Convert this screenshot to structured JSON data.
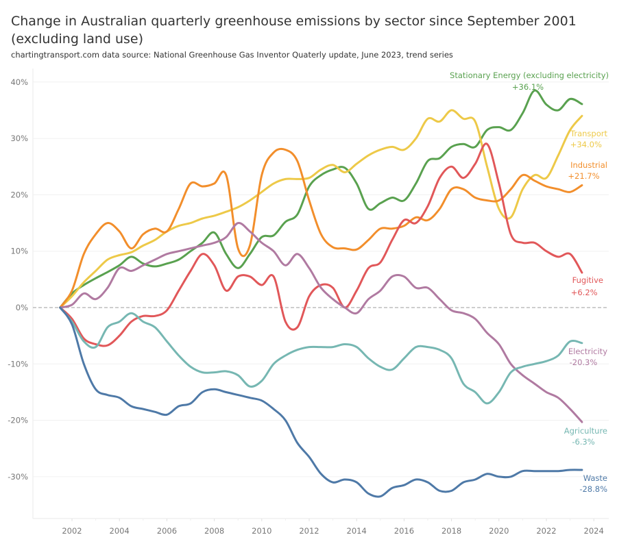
{
  "chart_data": {
    "type": "line",
    "title": "Change in Australian quarterly greenhouse emissions by sector since September 2001 (excluding land use)",
    "subtitle": "chartingtransport.com  data source: National Greenhouse Gas Inventor Quaterly update, June 2023, trend series",
    "xlabel": "",
    "ylabel": "",
    "xlim": [
      2001.0,
      2024.5
    ],
    "ylim": [
      -37,
      41
    ],
    "x_ticks": [
      2002,
      2004,
      2006,
      2008,
      2010,
      2012,
      2014,
      2016,
      2018,
      2020,
      2022,
      2024
    ],
    "x_tick_labels": [
      "2002",
      "2004",
      "2006",
      "2008",
      "2010",
      "2012",
      "2014",
      "2016",
      "2018",
      "2020",
      "2022",
      "2024"
    ],
    "y_ticks": [
      40,
      30,
      20,
      10,
      0,
      -10,
      -20,
      -30
    ],
    "y_tick_labels": [
      "40%",
      "30%",
      "20%",
      "10%",
      "0%",
      "-10%",
      "-20%",
      "-30%"
    ],
    "grid": true,
    "zero_line": "dashed",
    "legend": "direct-labels-right",
    "x": [
      2001.5,
      2002.0,
      2002.5,
      2003.0,
      2003.5,
      2004.0,
      2004.5,
      2005.0,
      2005.5,
      2006.0,
      2006.5,
      2007.0,
      2007.5,
      2008.0,
      2008.5,
      2009.0,
      2009.5,
      2010.0,
      2010.5,
      2011.0,
      2011.5,
      2012.0,
      2012.5,
      2013.0,
      2013.5,
      2014.0,
      2014.5,
      2015.0,
      2015.5,
      2016.0,
      2016.5,
      2017.0,
      2017.5,
      2018.0,
      2018.5,
      2019.0,
      2019.5,
      2020.0,
      2020.5,
      2021.0,
      2021.5,
      2022.0,
      2022.5,
      2023.0,
      2023.5
    ],
    "series": [
      {
        "name": "Stationary Energy (excluding electricity)",
        "label": "Stationary Energy (excluding electricity)",
        "end_label": "+36.1%",
        "color": "#59a14f",
        "values": [
          0,
          2.5,
          4.0,
          5.2,
          6.3,
          7.5,
          9.0,
          7.8,
          7.3,
          7.8,
          8.5,
          10.0,
          11.5,
          13.3,
          9.5,
          7.0,
          9.5,
          12.5,
          12.8,
          15.2,
          16.5,
          21.5,
          23.5,
          24.5,
          24.8,
          22.0,
          17.5,
          18.5,
          19.5,
          19.0,
          22.0,
          26.0,
          26.5,
          28.5,
          29.0,
          28.5,
          31.5,
          32.0,
          31.5,
          34.5,
          38.5,
          36.0,
          35.0,
          37.0,
          36.1
        ]
      },
      {
        "name": "Transport",
        "label": "Transport",
        "end_label": "+34.0%",
        "color": "#edc948",
        "values": [
          0,
          2.0,
          4.5,
          6.5,
          8.5,
          9.3,
          9.8,
          11.0,
          12.0,
          13.5,
          14.5,
          15.0,
          15.8,
          16.3,
          17.0,
          17.8,
          19.0,
          20.5,
          22.0,
          22.8,
          22.8,
          23.0,
          24.5,
          25.3,
          24.0,
          25.5,
          27.0,
          28.0,
          28.5,
          28.0,
          30.0,
          33.5,
          33.0,
          35.0,
          33.5,
          33.0,
          25.0,
          17.5,
          16.0,
          21.0,
          23.5,
          23.0,
          27.0,
          31.5,
          34.0
        ]
      },
      {
        "name": "Industrial",
        "label": "Industrial",
        "end_label": "+21.7%",
        "color": "#f28e2b",
        "values": [
          0,
          3.0,
          9.5,
          13.0,
          15.0,
          13.5,
          10.5,
          13.0,
          14.0,
          13.5,
          17.5,
          22.0,
          21.5,
          22.0,
          23.5,
          10.5,
          11.0,
          23.5,
          27.5,
          28.0,
          26.0,
          19.0,
          13.0,
          10.7,
          10.5,
          10.3,
          12.0,
          14.0,
          14.0,
          14.5,
          16.0,
          15.5,
          17.5,
          21.0,
          21.0,
          19.5,
          19.0,
          19.0,
          21.0,
          23.5,
          22.5,
          21.5,
          21.0,
          20.5,
          21.7
        ]
      },
      {
        "name": "Fugitive",
        "label": "Fugitive",
        "end_label": "+6.2%",
        "color": "#e15759",
        "values": [
          0,
          -2.0,
          -5.5,
          -6.5,
          -6.7,
          -5.0,
          -2.5,
          -1.5,
          -1.5,
          -0.5,
          3.0,
          6.5,
          9.5,
          7.5,
          3.0,
          5.5,
          5.5,
          4.0,
          5.5,
          -2.5,
          -3.5,
          2.0,
          4.0,
          3.5,
          0.0,
          3.0,
          7.0,
          8.0,
          12.0,
          15.5,
          15.0,
          18.0,
          23.0,
          25.0,
          23.0,
          25.5,
          29.0,
          22.0,
          13.0,
          11.5,
          11.5,
          10.0,
          9.0,
          9.5,
          6.2
        ]
      },
      {
        "name": "Electricity",
        "label": "Electricity",
        "end_label": "-20.3%",
        "color": "#b07aa1",
        "values": [
          0,
          0.5,
          2.5,
          1.5,
          3.5,
          7.0,
          6.5,
          7.5,
          8.5,
          9.5,
          10.0,
          10.5,
          11.0,
          11.5,
          12.5,
          15.0,
          13.5,
          11.5,
          10.0,
          7.5,
          9.5,
          7.0,
          3.5,
          1.5,
          0.0,
          -1.0,
          1.5,
          3.0,
          5.5,
          5.5,
          3.5,
          3.5,
          1.5,
          -0.5,
          -1.0,
          -2.0,
          -4.5,
          -6.5,
          -10.0,
          -12.0,
          -13.5,
          -15.0,
          -16.0,
          -18.0,
          -20.3
        ]
      },
      {
        "name": "Agriculture",
        "label": "Agriculture",
        "end_label": "-6.3%",
        "color": "#76b7b2",
        "values": [
          0,
          -2.5,
          -6.0,
          -7.0,
          -3.5,
          -2.5,
          -1.0,
          -2.5,
          -3.5,
          -6.0,
          -8.5,
          -10.5,
          -11.5,
          -11.5,
          -11.3,
          -12.0,
          -14.0,
          -13.0,
          -10.0,
          -8.5,
          -7.5,
          -7.0,
          -7.0,
          -7.0,
          -6.5,
          -7.0,
          -9.0,
          -10.5,
          -11.0,
          -9.0,
          -7.0,
          -7.0,
          -7.5,
          -9.0,
          -13.5,
          -15.0,
          -17.0,
          -15.0,
          -11.5,
          -10.5,
          -10.0,
          -9.5,
          -8.5,
          -6.0,
          -6.3
        ]
      },
      {
        "name": "Waste",
        "label": "Waste",
        "end_label": "-28.8%",
        "color": "#4e79a7",
        "values": [
          0,
          -3.0,
          -10.0,
          -14.5,
          -15.5,
          -16.0,
          -17.5,
          -18.0,
          -18.5,
          -19.0,
          -17.5,
          -17.0,
          -15.0,
          -14.5,
          -15.0,
          -15.5,
          -16.0,
          -16.5,
          -18.0,
          -20.0,
          -24.0,
          -26.5,
          -29.5,
          -31.0,
          -30.5,
          -31.0,
          -33.0,
          -33.5,
          -32.0,
          -31.5,
          -30.5,
          -31.0,
          -32.5,
          -32.5,
          -31.0,
          -30.5,
          -29.5,
          -30.0,
          -30.0,
          -29.0,
          -29.0,
          -29.0,
          -29.0,
          -28.8,
          -28.8
        ]
      }
    ]
  }
}
